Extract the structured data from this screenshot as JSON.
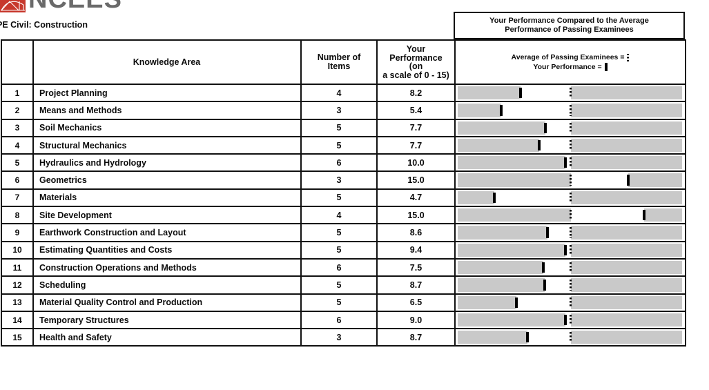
{
  "logo": {
    "brand": "NCEES",
    "mark_color": "#c7382c",
    "text_color": "#6a6a6a"
  },
  "exam_title": "PE Civil: Construction",
  "comparison_header": {
    "line1": "Your Performance Compared to the Average",
    "line2": "Performance of Passing Examinees"
  },
  "legend": {
    "average_label": "Average of Passing Examinees =",
    "your_label": "Your Performance ="
  },
  "table": {
    "headers": {
      "knowledge_area": "Knowledge Area",
      "number_of_items": "Number of\nItems",
      "your_performance": "Your\nPerformance\n(on\na scale of 0 - 15)"
    },
    "bar_color": "#c9c9c9",
    "rows": [
      {
        "num": "1",
        "area": "Project Planning",
        "items": "4",
        "performance": "8.2",
        "your_mark_pct": 28.0,
        "avg_mark_pct": 50.4
      },
      {
        "num": "2",
        "area": "Means and Methods",
        "items": "3",
        "performance": "5.4",
        "your_mark_pct": 19.3,
        "avg_mark_pct": 50.4
      },
      {
        "num": "3",
        "area": "Soil Mechanics",
        "items": "5",
        "performance": "7.7",
        "your_mark_pct": 39.2,
        "avg_mark_pct": 50.4
      },
      {
        "num": "4",
        "area": "Structural Mechanics",
        "items": "5",
        "performance": "7.7",
        "your_mark_pct": 36.3,
        "avg_mark_pct": 50.4
      },
      {
        "num": "5",
        "area": "Hydraulics and Hydrology",
        "items": "6",
        "performance": "10.0",
        "your_mark_pct": 48.1,
        "avg_mark_pct": 50.4
      },
      {
        "num": "6",
        "area": "Geometrics",
        "items": "3",
        "performance": "15.0",
        "your_mark_pct": 75.9,
        "avg_mark_pct": 50.4
      },
      {
        "num": "7",
        "area": "Materials",
        "items": "5",
        "performance": "4.7",
        "your_mark_pct": 16.3,
        "avg_mark_pct": 50.4
      },
      {
        "num": "8",
        "area": "Site Development",
        "items": "4",
        "performance": "15.0",
        "your_mark_pct": 83.0,
        "avg_mark_pct": 50.4
      },
      {
        "num": "9",
        "area": "Earthwork Construction and Layout",
        "items": "5",
        "performance": "8.6",
        "your_mark_pct": 40.1,
        "avg_mark_pct": 50.4
      },
      {
        "num": "10",
        "area": "Estimating Quantities and Costs",
        "items": "5",
        "performance": "9.4",
        "your_mark_pct": 48.0,
        "avg_mark_pct": 50.4
      },
      {
        "num": "11",
        "area": "Construction Operations and Methods",
        "items": "6",
        "performance": "7.5",
        "your_mark_pct": 38.0,
        "avg_mark_pct": 50.4
      },
      {
        "num": "12",
        "area": "Scheduling",
        "items": "5",
        "performance": "8.7",
        "your_mark_pct": 38.9,
        "avg_mark_pct": 50.4
      },
      {
        "num": "13",
        "area": "Material Quality Control and Production",
        "items": "5",
        "performance": "6.5",
        "your_mark_pct": 26.0,
        "avg_mark_pct": 50.4
      },
      {
        "num": "14",
        "area": "Temporary Structures",
        "items": "6",
        "performance": "9.0",
        "your_mark_pct": 48.0,
        "avg_mark_pct": 50.4
      },
      {
        "num": "15",
        "area": "Health and Safety",
        "items": "3",
        "performance": "8.7",
        "your_mark_pct": 31.1,
        "avg_mark_pct": 50.4
      }
    ]
  },
  "chart_data": {
    "type": "bar",
    "title": "Your Performance Compared to the Average Performance of Passing Examinees",
    "categories": [
      "Project Planning",
      "Means and Methods",
      "Soil Mechanics",
      "Structural Mechanics",
      "Hydraulics and Hydrology",
      "Geometrics",
      "Materials",
      "Site Development",
      "Earthwork Construction and Layout",
      "Estimating Quantities and Costs",
      "Construction Operations and Methods",
      "Scheduling",
      "Material Quality Control and Production",
      "Temporary Structures",
      "Health and Safety"
    ],
    "series": [
      {
        "name": "Number of Items",
        "values": [
          4,
          3,
          5,
          5,
          6,
          3,
          5,
          4,
          5,
          5,
          6,
          5,
          5,
          6,
          3
        ]
      },
      {
        "name": "Your Performance (on a scale of 0 - 15)",
        "values": [
          8.2,
          5.4,
          7.7,
          7.7,
          10.0,
          15.0,
          4.7,
          15.0,
          8.6,
          9.4,
          7.5,
          8.7,
          6.5,
          9.0,
          8.7
        ]
      }
    ],
    "xlim": [
      0,
      15
    ],
    "legend_position": "top",
    "marker_legend": {
      "solid_line": "Your Performance",
      "dotted_line": "Average of Passing Examinees"
    }
  }
}
